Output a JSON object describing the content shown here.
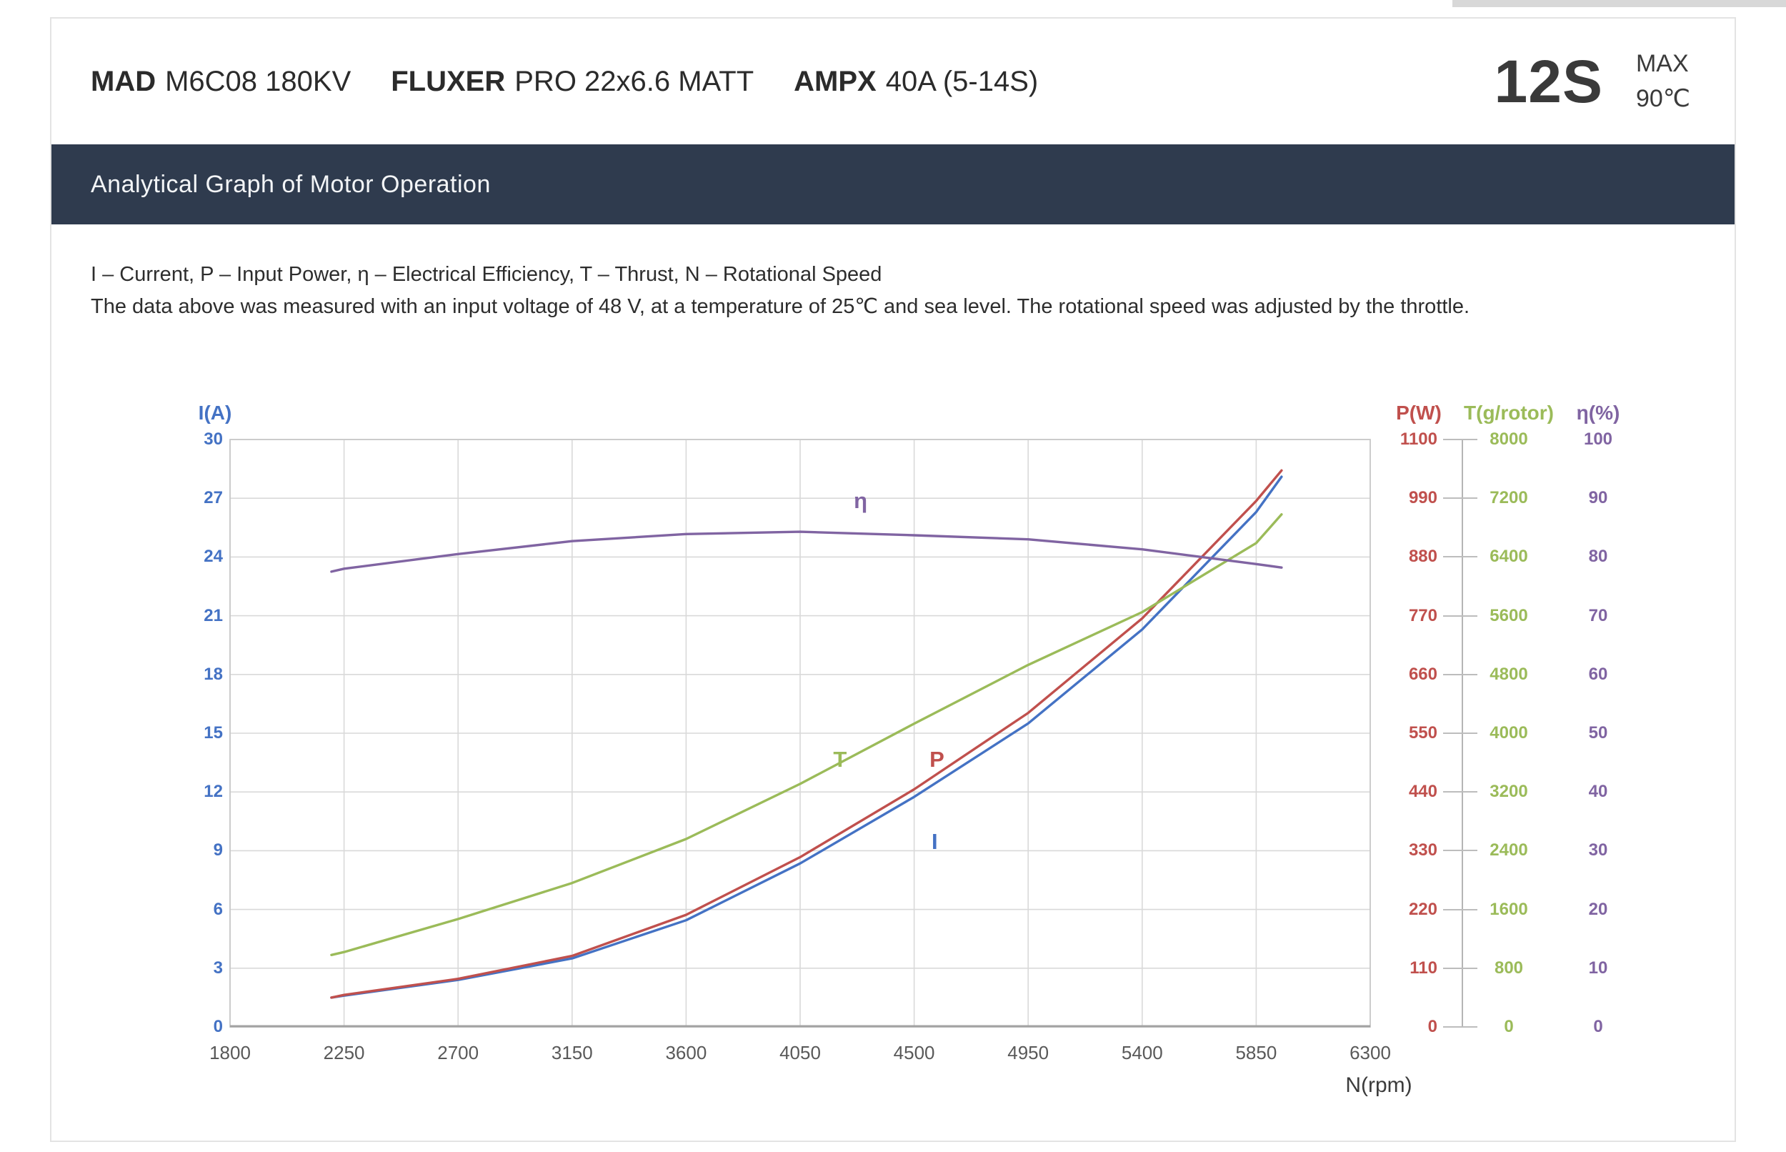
{
  "header": {
    "items": [
      {
        "brand": "MAD",
        "rest": "M6C08 180KV"
      },
      {
        "brand": "FLUXER",
        "rest": "PRO 22x6.6 MATT"
      },
      {
        "brand": "AMPX",
        "rest": "40A  (5-14S)"
      }
    ],
    "battery": "12S",
    "max_label": "MAX",
    "max_temp": "90℃"
  },
  "section_title": "Analytical Graph of Motor Operation",
  "notes": {
    "line1": "I – Current, P – Input Power, η – Electrical Efficiency, T – Thrust,   N – Rotational Speed",
    "line2": "The data above was measured with an input voltage of 48 V, at a temperature of 25℃ and sea level. The rotational speed was adjusted by the throttle."
  },
  "chart_data": {
    "type": "line",
    "title": "",
    "xlabel": "N(rpm)",
    "x_axis": {
      "min": 1800,
      "max": 6300,
      "ticks": [
        1800,
        2250,
        2700,
        3150,
        3600,
        4050,
        4500,
        4950,
        5400,
        5850,
        6300
      ]
    },
    "grid": true,
    "x": [
      2200,
      2250,
      2700,
      3150,
      3600,
      4050,
      4500,
      4950,
      5400,
      5850,
      5950
    ],
    "series": [
      {
        "name": "I",
        "axis_label": "I(A)",
        "unit": "A",
        "color": "#4472c4",
        "min": 0,
        "max": 30,
        "ticks": [
          0,
          3,
          6,
          9,
          12,
          15,
          18,
          21,
          24,
          27,
          30
        ],
        "values": [
          1.5,
          1.6,
          2.4,
          3.5,
          5.45,
          8.35,
          11.75,
          15.5,
          20.3,
          26.3,
          28.1
        ],
        "column": {
          "side": "left",
          "align": "right",
          "anchor": 312
        },
        "header_x": 301,
        "curve_label": {
          "text": "I",
          "fx": 0.618,
          "fy": 0.685
        }
      },
      {
        "name": "P",
        "axis_label": "P(W)",
        "unit": "W",
        "color": "#c0504d",
        "min": 0,
        "max": 1100,
        "ticks": [
          0,
          110,
          220,
          330,
          440,
          550,
          660,
          770,
          880,
          990,
          1100
        ],
        "values": [
          55,
          60,
          90,
          133,
          210,
          318,
          445,
          588,
          765,
          985,
          1042
        ],
        "column": {
          "side": "right",
          "align": "right",
          "anchor": 2012
        },
        "header_x": 1986,
        "curve_label": {
          "text": "P",
          "fx": 0.62,
          "fy": 0.545
        }
      },
      {
        "name": "T",
        "axis_label": "T(g/rotor)",
        "unit": "g/rotor",
        "color": "#9bbb59",
        "min": 0,
        "max": 8000,
        "ticks": [
          0,
          800,
          1600,
          2400,
          3200,
          4000,
          4800,
          5600,
          6400,
          7200,
          8000
        ],
        "values": [
          980,
          1020,
          1470,
          1960,
          2560,
          3310,
          4130,
          4930,
          5650,
          6590,
          6980
        ],
        "column": {
          "side": "right",
          "align": "center",
          "anchor": 2112
        },
        "header_x": 2112,
        "curve_label": {
          "text": "T",
          "fx": 0.535,
          "fy": 0.545
        }
      },
      {
        "name": "eta",
        "axis_label": "η(%)",
        "unit": "%",
        "color": "#8064a2",
        "min": 0,
        "max": 100,
        "ticks": [
          0,
          10,
          20,
          30,
          40,
          50,
          60,
          70,
          80,
          90,
          100
        ],
        "values": [
          77.5,
          78,
          80.5,
          82.7,
          83.9,
          84.3,
          83.7,
          83.0,
          81.3,
          78.8,
          78.2
        ],
        "column": {
          "side": "right",
          "align": "center",
          "anchor": 2237
        },
        "header_x": 2237,
        "curve_label": {
          "text": "η",
          "fx": 0.553,
          "fy": 0.105
        }
      }
    ]
  }
}
